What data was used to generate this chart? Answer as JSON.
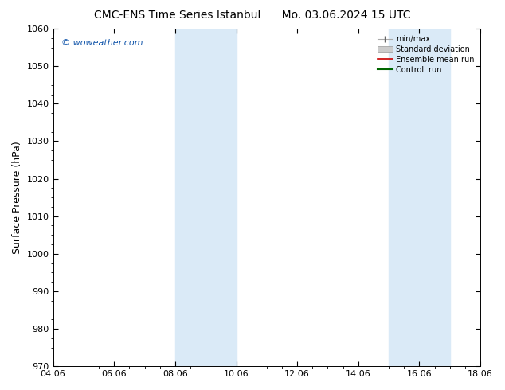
{
  "title": "CMC-ENS Time Series Istanbul      Mo. 03.06.2024 15 UTC",
  "ylabel": "Surface Pressure (hPa)",
  "ylim": [
    970,
    1060
  ],
  "yticks": [
    970,
    980,
    990,
    1000,
    1010,
    1020,
    1030,
    1040,
    1050,
    1060
  ],
  "xlim_start": 0,
  "xlim_end": 14,
  "xtick_labels": [
    "04.06",
    "06.06",
    "08.06",
    "10.06",
    "12.06",
    "14.06",
    "16.06",
    "18.06"
  ],
  "xtick_positions": [
    0,
    2,
    4,
    6,
    8,
    10,
    12,
    14
  ],
  "shaded_bands": [
    {
      "xmin": 4,
      "xmax": 6,
      "color": "#daeaf7"
    },
    {
      "xmin": 11,
      "xmax": 13,
      "color": "#daeaf7"
    }
  ],
  "watermark": "© woweather.com",
  "legend_items": [
    {
      "label": "min/max",
      "type": "minmax"
    },
    {
      "label": "Standard deviation",
      "type": "stddev"
    },
    {
      "label": "Ensemble mean run",
      "type": "line",
      "color": "#cc0000",
      "lw": 1.2
    },
    {
      "label": "Controll run",
      "type": "line",
      "color": "#006600",
      "lw": 1.5
    }
  ],
  "bg_color": "#ffffff",
  "plot_bg_color": "#ffffff",
  "title_fontsize": 10,
  "ylabel_fontsize": 9,
  "tick_fontsize": 8,
  "watermark_color": "#1155aa",
  "watermark_fontsize": 8
}
